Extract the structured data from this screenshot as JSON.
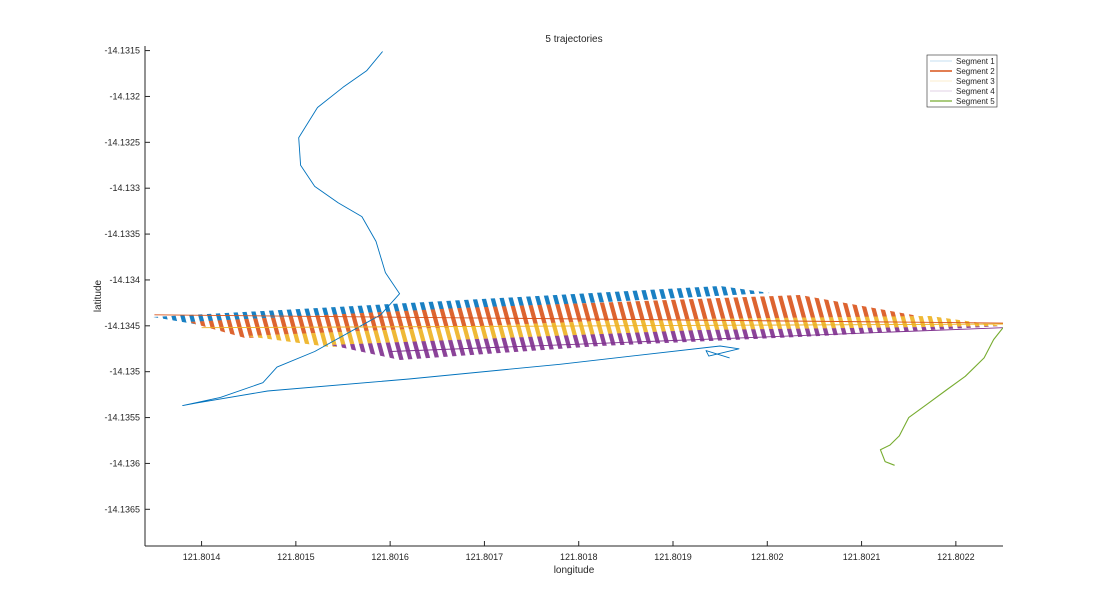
{
  "chart_data": {
    "type": "line",
    "title": "5 trajectories",
    "xlabel": "longitude",
    "ylabel": "latitude",
    "xlim": [
      121.80134,
      121.80225
    ],
    "ylim": [
      -14.1369,
      -14.13145
    ],
    "xticks": [
      121.8014,
      121.8015,
      121.8016,
      121.8017,
      121.8018,
      121.8019,
      121.802,
      121.8021,
      121.8022
    ],
    "xtick_labels": [
      "121.8014",
      "121.8015",
      "121.8016",
      "121.8017",
      "121.8018",
      "121.8019",
      "121.802",
      "121.8021",
      "121.8022"
    ],
    "yticks": [
      -14.1315,
      -14.132,
      -14.1325,
      -14.133,
      -14.1335,
      -14.134,
      -14.1345,
      -14.135,
      -14.1355,
      -14.136,
      -14.1365
    ],
    "ytick_labels": [
      "-14.1315",
      "-14.132",
      "-14.1325",
      "-14.133",
      "-14.1335",
      "-14.134",
      "-14.1345",
      "-14.135",
      "-14.1355",
      "-14.136",
      "-14.1365"
    ],
    "grid": false,
    "legend_position": "top-right",
    "series": [
      {
        "name": "Segment 1",
        "color": "#0072BD",
        "x": [
          121.801592,
          121.801575,
          121.80155,
          121.801523,
          121.801503,
          121.801505,
          121.80152,
          121.801545,
          121.80157,
          121.801585,
          121.801595,
          121.80161,
          121.80159,
          121.80152,
          121.80148,
          121.801465,
          121.80142,
          121.80138,
          121.801395,
          121.80147,
          121.80162,
          121.80178,
          121.80195,
          121.80197,
          121.801938,
          121.801935,
          121.80196
        ],
        "y": [
          -14.13151,
          -14.13172,
          -14.1319,
          -14.13212,
          -14.13245,
          -14.13275,
          -14.13298,
          -14.13316,
          -14.13331,
          -14.13358,
          -14.13392,
          -14.13415,
          -14.13438,
          -14.13478,
          -14.13495,
          -14.13512,
          -14.13528,
          -14.13537,
          -14.13534,
          -14.13521,
          -14.13508,
          -14.13492,
          -14.13472,
          -14.13475,
          -14.13483,
          -14.13477,
          -14.13485
        ]
      },
      {
        "name": "Segment 2",
        "color": "#D95319",
        "x": [
          121.80135,
          121.80225
        ],
        "y": [
          -14.13438,
          -14.13447
        ]
      },
      {
        "name": "Segment 3",
        "color": "#EDB120",
        "x": [
          121.8014,
          121.80225
        ],
        "y": [
          -14.13452,
          -14.13448
        ]
      },
      {
        "name": "Segment 4",
        "color": "#7E2F8E",
        "x": [
          121.8016,
          121.80225
        ],
        "y": [
          -14.13478,
          -14.13452
        ]
      },
      {
        "name": "Segment 5",
        "color": "#77AC30",
        "x": [
          121.80225,
          121.80224,
          121.80223,
          121.80221,
          121.80219,
          121.80217,
          121.80215,
          121.80214,
          121.80213,
          121.80212,
          121.802125,
          121.802135
        ],
        "y": [
          -14.13452,
          -14.13465,
          -14.13485,
          -14.13505,
          -14.1352,
          -14.13535,
          -14.1355,
          -14.1357,
          -14.1358,
          -14.13585,
          -14.13598,
          -14.13602
        ]
      }
    ]
  }
}
